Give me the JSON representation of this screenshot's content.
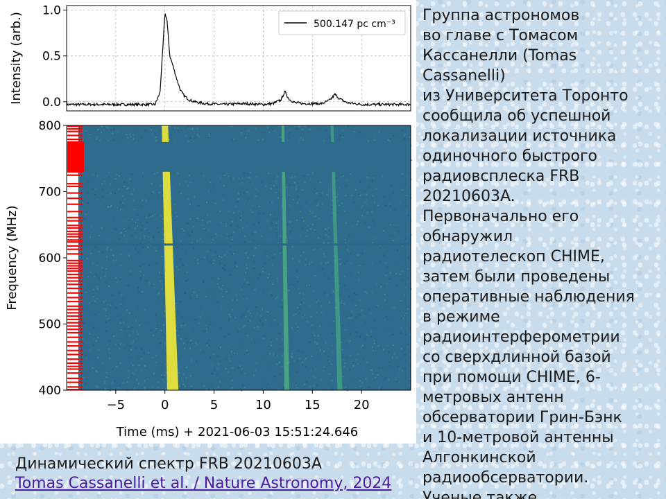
{
  "chart_data": [
    {
      "type": "line",
      "panel": "pulse-profile",
      "title": "",
      "xlabel": "",
      "ylabel": "Intensity (arb.)",
      "xlim": [
        -10,
        25
      ],
      "ylim": [
        -0.1,
        1.05
      ],
      "yticks": [
        0.0,
        0.5,
        1.0
      ],
      "ytick_labels": [
        "0.0",
        "0.5",
        "1.0"
      ],
      "grid": true,
      "legend_position": "top-right",
      "series": [
        {
          "name": "500.147 pc cm⁻³",
          "color": "#000000",
          "x": [
            -10,
            -5,
            -1,
            -0.5,
            -0.2,
            0,
            0.2,
            0.5,
            0.8,
            1.2,
            1.6,
            2.0,
            2.5,
            3.0,
            4.0,
            6,
            8,
            10,
            11,
            11.8,
            12.2,
            12.6,
            13.2,
            14,
            16,
            16.8,
            17.3,
            17.8,
            18.5,
            20,
            22,
            25
          ],
          "y": [
            -0.03,
            -0.03,
            -0.03,
            0.1,
            0.6,
            0.97,
            0.9,
            0.5,
            0.4,
            0.25,
            0.12,
            0.06,
            0.02,
            0.0,
            -0.02,
            -0.03,
            -0.02,
            -0.03,
            -0.02,
            0.02,
            0.11,
            0.03,
            -0.01,
            -0.02,
            -0.02,
            0.02,
            0.08,
            0.03,
            -0.01,
            -0.03,
            -0.03,
            -0.03
          ]
        }
      ]
    },
    {
      "type": "heatmap",
      "panel": "dynamic-spectrum",
      "title": "",
      "xlabel": "Time (ms) + 2021-06-03 15:51:24.646",
      "ylabel": "Frequency (MHz)",
      "xlim": [
        -10,
        25
      ],
      "ylim": [
        400,
        800
      ],
      "xticks": [
        -5,
        0,
        5,
        10,
        15,
        20
      ],
      "xtick_labels": [
        "−5",
        "0",
        "5",
        "10",
        "15",
        "20"
      ],
      "yticks": [
        400,
        500,
        600,
        700,
        800
      ],
      "ytick_labels": [
        "400",
        "500",
        "600",
        "700",
        "800"
      ],
      "colormap": "viridis",
      "background_color": "#2f6b8c",
      "masked_band_mhz": [
        730,
        775
      ],
      "masked_line_mhz": 620,
      "rfi_flag_color": "#ff0000",
      "rfi_flagged_frequencies_mhz": [
        799,
        795,
        791,
        785,
        779,
        775,
        770,
        765,
        760,
        755,
        750,
        745,
        740,
        735,
        730,
        725,
        712,
        708,
        698,
        690,
        681,
        670,
        661,
        656,
        649,
        645,
        640,
        636,
        632,
        627,
        624,
        618,
        613,
        606,
        596,
        592,
        588,
        584,
        580,
        575,
        570,
        565,
        560,
        554,
        547,
        540,
        534,
        527,
        522,
        517,
        512,
        507,
        502,
        497,
        492,
        487,
        480,
        473,
        467,
        460,
        454,
        447,
        441,
        436,
        432,
        426,
        418,
        412,
        405,
        401
      ],
      "bursts": [
        {
          "component": 1,
          "t_at_800mhz_ms": 0.0,
          "t_at_400mhz_ms": 0.8,
          "brightness": 1.0,
          "color": "#e8e33a"
        },
        {
          "component": 2,
          "t_at_800mhz_ms": 12.0,
          "t_at_400mhz_ms": 12.4,
          "brightness": 0.35,
          "color": "#5fcf78"
        },
        {
          "component": 3,
          "t_at_800mhz_ms": 17.0,
          "t_at_400mhz_ms": 17.8,
          "brightness": 0.3,
          "color": "#4ec17e"
        }
      ]
    }
  ],
  "side_text": {
    "lines": [
      "Группа астрономов",
      "во главе с Томасом",
      "Кассанелли (Tomas",
      "Cassanelli)",
      "из Университета Торонто",
      "сообщила об успешной",
      "локализации источника",
      "одиночного быстрого",
      "радиовсплеска FRB",
      "20210603A.",
      "Первоначально его",
      "обнаружил",
      "радиотелескоп CHIME,",
      "затем были проведены",
      "оперативные наблюдения",
      "в режиме",
      "радиоинтерферометрии",
      "со сверхдлинной базой",
      "при помощи CHIME, 6-",
      "метровых антенн",
      "обсерватории Грин-Бэнк",
      "и 10-метровой антенны",
      "Алгонкинской",
      "радиообсерватории.",
      "Ученые также"
    ]
  },
  "caption": {
    "text": "Динамический спектр FRB 20210603A",
    "link_text": "Tomas Cassanelli et al. / Nature Astronomy, 2024"
  },
  "colors": {
    "page_background": "#c9dceb",
    "link": "#4b1c9e",
    "text": "#1a1a1a"
  }
}
